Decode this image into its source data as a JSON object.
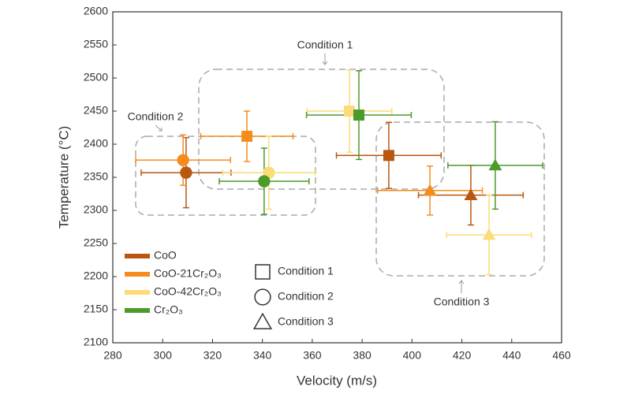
{
  "chart_data": {
    "type": "scatter",
    "xlabel": "Velocity (m/s)",
    "ylabel": "Temperature (°C)",
    "xlim": [
      280,
      460
    ],
    "xticks": [
      280,
      300,
      320,
      340,
      360,
      380,
      400,
      420,
      440,
      460
    ],
    "ylim": [
      2100,
      2600
    ],
    "yticks": [
      2100,
      2150,
      2200,
      2250,
      2300,
      2350,
      2400,
      2450,
      2500,
      2550,
      2600
    ],
    "markers": [
      {
        "name": "Condition 1",
        "shape": "square"
      },
      {
        "name": "Condition 2",
        "shape": "circle"
      },
      {
        "name": "Condition 3",
        "shape": "triangle"
      }
    ],
    "annotations": [
      "Condition 1",
      "Condition 2",
      "Condition 3"
    ],
    "series": [
      {
        "name": "CoO",
        "color": "#b8570f",
        "x": [
          390.7,
          309.4,
          423.6
        ],
        "values": [
          2383,
          2357,
          2323
        ],
        "xerr": [
          21,
          18,
          21
        ],
        "yerr": [
          50,
          53,
          45
        ]
      },
      {
        "name": "CoO-21Cr₂O₃",
        "color": "#f58c1e",
        "x": [
          333.8,
          308.2,
          407.2
        ],
        "values": [
          2412,
          2376,
          2330
        ],
        "xerr": [
          18.5,
          19,
          21
        ],
        "yerr": [
          38,
          38,
          37
        ]
      },
      {
        "name": "CoO-42Cr₂O₃",
        "color": "#fbdc78",
        "x": [
          374.9,
          342.6,
          430.9
        ],
        "values": [
          2450,
          2357,
          2263
        ],
        "xerr": [
          17,
          18.5,
          17
        ],
        "yerr": [
          62,
          55,
          60
        ]
      },
      {
        "name": "Cr₂O₃",
        "color": "#4c9a2a",
        "x": [
          378.7,
          340.7,
          433.4
        ],
        "values": [
          2444,
          2344,
          2368
        ],
        "xerr": [
          21,
          18,
          19
        ],
        "yerr": [
          67,
          50,
          66
        ]
      }
    ]
  }
}
